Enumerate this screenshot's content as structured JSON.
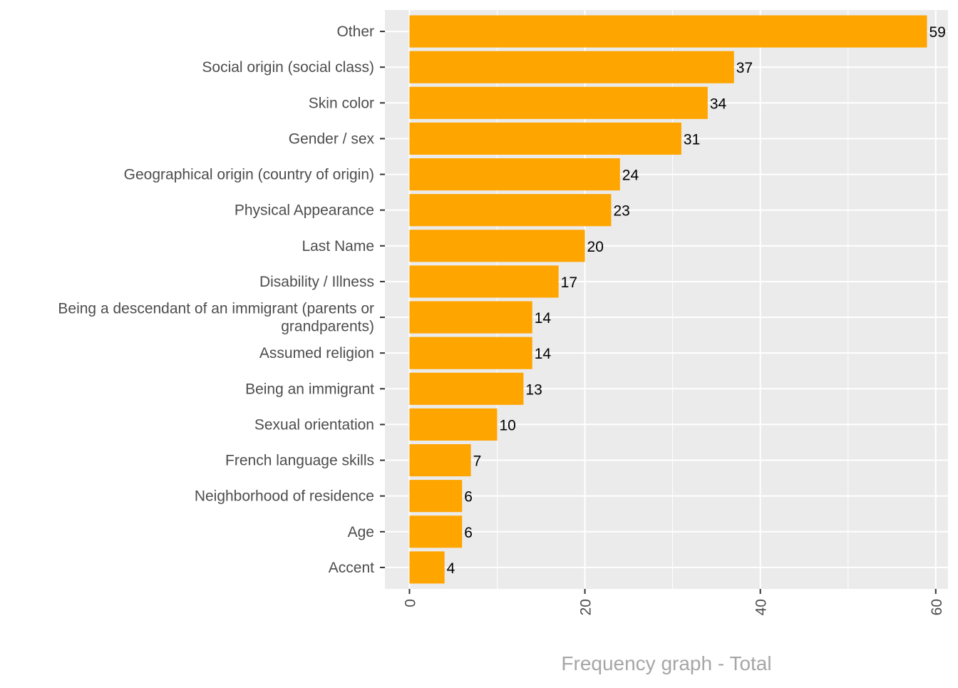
{
  "chart_data": {
    "type": "bar",
    "orientation": "horizontal",
    "title": "",
    "xlabel": "Frequency graph - Total",
    "ylabel": "",
    "xlim": [
      -2.8,
      61.4
    ],
    "xticks": [
      0,
      20,
      40,
      60
    ],
    "xtick_labels": [
      "0",
      "20",
      "40",
      "60"
    ],
    "grid": true,
    "bar_color": "#FFA500",
    "panel_color": "#EBEBEB",
    "categories": [
      "Other",
      "Social origin (social class)",
      "Skin color",
      "Gender / sex",
      "Geographical origin (country of origin)",
      "Physical Appearance",
      "Last Name",
      "Disability / Illness",
      "Being a descendant of an immigrant (parents or\ngrandparents)",
      "Assumed religion",
      "Being an immigrant",
      "Sexual orientation",
      "French language skills",
      "Neighborhood of residence",
      "Age",
      "Accent"
    ],
    "values": [
      59,
      37,
      34,
      31,
      24,
      23,
      20,
      17,
      14,
      14,
      13,
      10,
      7,
      6,
      6,
      4
    ],
    "data_labels": [
      "59",
      "37",
      "34",
      "31",
      "24",
      "23",
      "20",
      "17",
      "14",
      "14",
      "13",
      "10",
      "7",
      "6",
      "6",
      "4"
    ]
  }
}
